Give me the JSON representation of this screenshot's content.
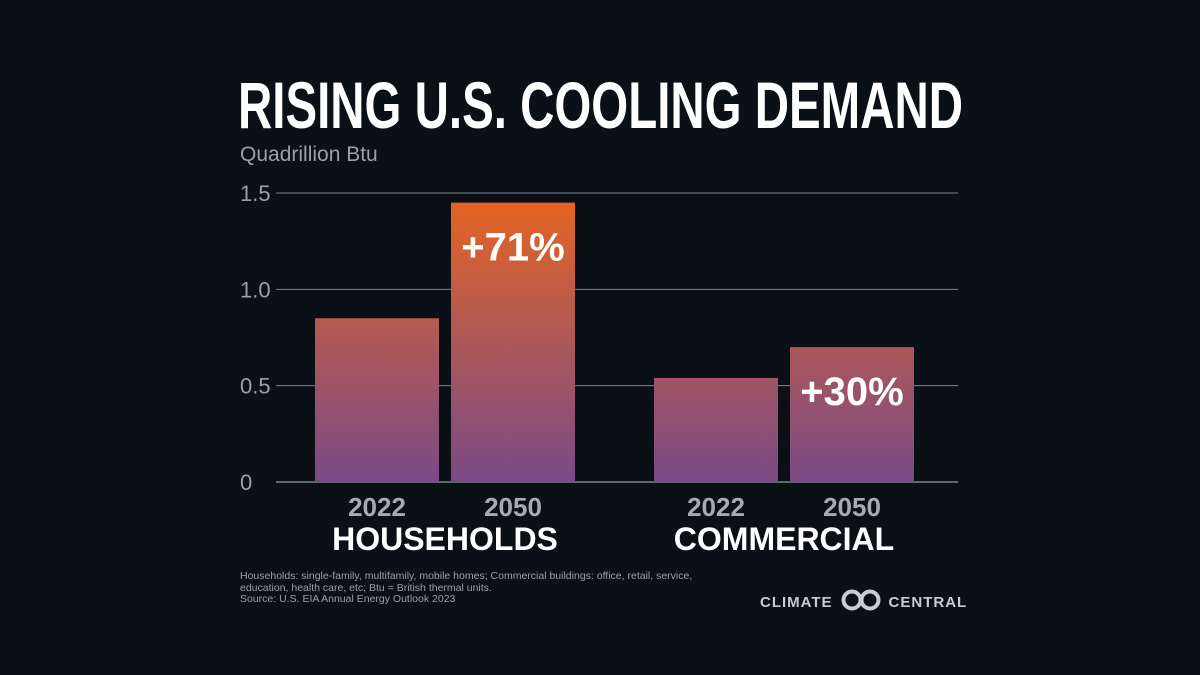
{
  "title": "RISING U.S. COOLING DEMAND",
  "unit_label": "Quadrillion Btu",
  "footnote": {
    "line1": "Households: single-family, multifamily, mobile homes; Commercial buildings: office, retail, service,",
    "line2": "education, health care, etc; Btu = British thermal units.",
    "source": "Source: U.S. EIA Annual Energy Outlook 2023"
  },
  "logo": {
    "left_text": "CLIMATE",
    "right_text": "CENTRAL",
    "icon": "interlocking-rings-icon"
  },
  "colors": {
    "background": "#0b0f16",
    "bar_bottom": "#7a4a86",
    "bar_mid": "#a8575f",
    "bar_top_high": "#e2622a",
    "gridline": "#7d838b",
    "text_muted": "#9aa0a8"
  },
  "chart_data": {
    "type": "bar",
    "title": "RISING U.S. COOLING DEMAND",
    "ylabel": "Quadrillion Btu",
    "ylim": [
      0,
      1.5
    ],
    "yticks": [
      "0",
      "0.5",
      "1.0",
      "1.5"
    ],
    "ytick_values": [
      0,
      0.5,
      1.0,
      1.5
    ],
    "grid": true,
    "groups": [
      {
        "name": "HOUSEHOLDS",
        "categories": [
          "2022",
          "2050"
        ],
        "values": [
          0.85,
          1.45
        ],
        "change_label": "+71%"
      },
      {
        "name": "COMMERCIAL",
        "categories": [
          "2022",
          "2050"
        ],
        "values": [
          0.54,
          0.7
        ],
        "change_label": "+30%"
      }
    ]
  }
}
